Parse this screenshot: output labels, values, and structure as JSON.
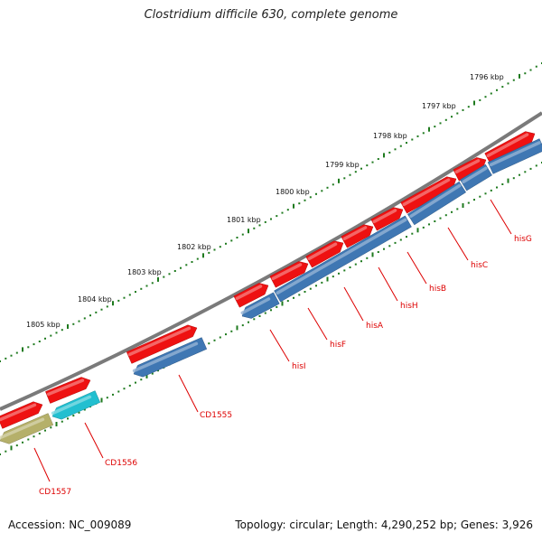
{
  "title": "Clostridium difficile 630, complete genome",
  "footer": {
    "accession": "Accession: NC_009089",
    "summary": "Topology: circular; Length: 4,290,252 bp; Genes: 3,926"
  },
  "colors": {
    "backbone": "#7a7a7a",
    "tick_green": "#1e7a1e",
    "gene_forward": "#ee1111",
    "gene_reverse": "#3f77b3",
    "gene_cyan": "#22bfd0",
    "gene_olive": "#b5b06a",
    "label_red": "#dd0000"
  },
  "ruler": {
    "labels": [
      "1796 kbp",
      "1797 kbp",
      "1798 kbp",
      "1799 kbp",
      "1800 kbp",
      "1801 kbp",
      "1802 kbp",
      "1803 kbp",
      "1804 kbp",
      "1805 kbp"
    ]
  },
  "genes": {
    "labels": [
      "hisG",
      "hisC",
      "hisB",
      "hisH",
      "hisA",
      "hisF",
      "hisI",
      "CD1555",
      "CD1556",
      "CD1557"
    ]
  }
}
